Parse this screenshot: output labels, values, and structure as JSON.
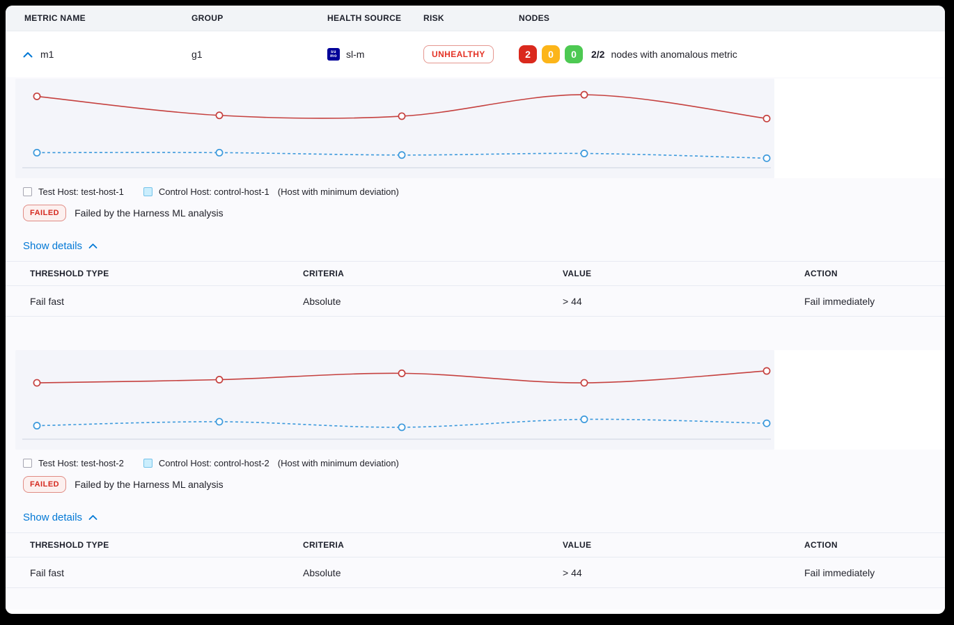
{
  "colors": {
    "accent_blue": "#0278d5",
    "risk_red": "#e43326",
    "test_line": "#c5403e",
    "control_line": "#3b99dc",
    "axis_line": "#ccd3e0",
    "chart_bg": "#f4f5fa"
  },
  "header": {
    "columns": [
      "METRIC NAME",
      "GROUP",
      "HEALTH SOURCE",
      "RISK",
      "NODES"
    ]
  },
  "metric_row": {
    "metric_name": "m1",
    "group": "g1",
    "health_source": {
      "label": "sl-m",
      "icon": "sumo-logic",
      "icon_text_top": "su",
      "icon_text_bottom": "mo"
    },
    "risk": "UNHEALTHY",
    "nodes": {
      "counts": [
        {
          "value": "2",
          "color": "#da291d",
          "status": "unhealthy"
        },
        {
          "value": "0",
          "color": "#fcb519",
          "status": "warning"
        },
        {
          "value": "0",
          "color": "#4dc952",
          "status": "healthy"
        }
      ],
      "ratio": "2/2",
      "summary": "nodes with anomalous metric"
    }
  },
  "sections": [
    {
      "legend": {
        "test_label": "Test Host: test-host-1",
        "control_label": "Control Host: control-host-1",
        "note": "(Host with minimum deviation)"
      },
      "status": {
        "badge": "FAILED",
        "message": "Failed by the Harness ML analysis"
      },
      "details_link": "Show details",
      "table": {
        "headers": [
          "THRESHOLD TYPE",
          "CRITERIA",
          "VALUE",
          "ACTION"
        ],
        "rows": [
          [
            "Fail fast",
            "Absolute",
            "> 44",
            "Fail immediately"
          ]
        ]
      }
    },
    {
      "legend": {
        "test_label": "Test Host: test-host-2",
        "control_label": "Control Host: control-host-2",
        "note": "(Host with minimum deviation)"
      },
      "status": {
        "badge": "FAILED",
        "message": "Failed by the Harness ML analysis"
      },
      "details_link": "Show details",
      "table": {
        "headers": [
          "THRESHOLD TYPE",
          "CRITERIA",
          "VALUE",
          "ACTION"
        ],
        "rows": [
          [
            "Fail fast",
            "Absolute",
            "> 44",
            "Fail immediately"
          ]
        ]
      }
    }
  ],
  "chart_data": [
    {
      "type": "line",
      "title": "test-host-1 vs control-host-1 metric timeseries",
      "x": [
        0,
        1,
        2,
        3,
        4
      ],
      "xlabel": "",
      "ylabel": "",
      "ylim": [
        0,
        100
      ],
      "units": "arbitrary (no axis tick labels shown)",
      "grid": false,
      "legend_position": "below",
      "series": [
        {
          "name": "Test Host: test-host-1",
          "style": "solid",
          "color": "#c5403e",
          "values": [
            90,
            66,
            65,
            92,
            62
          ]
        },
        {
          "name": "Control Host: control-host-1",
          "style": "dashed",
          "color": "#3b99dc",
          "values": [
            19,
            19,
            16,
            18,
            12
          ]
        }
      ]
    },
    {
      "type": "line",
      "title": "test-host-2 vs control-host-2 metric timeseries",
      "x": [
        0,
        1,
        2,
        3,
        4
      ],
      "xlabel": "",
      "ylabel": "",
      "ylim": [
        0,
        100
      ],
      "units": "arbitrary (no axis tick labels shown)",
      "grid": false,
      "legend_position": "below",
      "series": [
        {
          "name": "Test Host: test-host-2",
          "style": "solid",
          "color": "#c5403e",
          "values": [
            71,
            75,
            83,
            71,
            86
          ]
        },
        {
          "name": "Control Host: control-host-2",
          "style": "dashed",
          "color": "#3b99dc",
          "values": [
            17,
            22,
            15,
            25,
            20
          ]
        }
      ]
    }
  ]
}
